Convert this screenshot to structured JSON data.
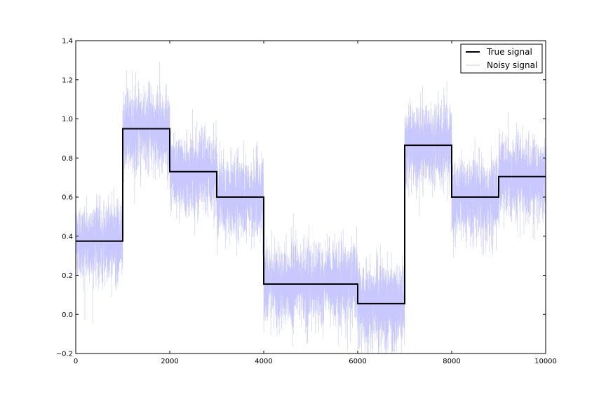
{
  "chart_data": {
    "type": "line",
    "title": "",
    "xlabel": "",
    "ylabel": "",
    "xlim": [
      0,
      10000
    ],
    "ylim": [
      -0.2,
      1.4
    ],
    "xticks": [
      0,
      2000,
      4000,
      6000,
      8000,
      10000
    ],
    "xtick_labels": [
      "0",
      "2000",
      "4000",
      "6000",
      "8000",
      "10000"
    ],
    "yticks": [
      -0.2,
      0.0,
      0.2,
      0.4,
      0.6,
      0.8,
      1.0,
      1.2,
      1.4
    ],
    "ytick_labels": [
      "−0.2",
      "0.0",
      "0.2",
      "0.4",
      "0.6",
      "0.8",
      "1.0",
      "1.2",
      "1.4"
    ],
    "grid": false,
    "legend_position": "top-right",
    "series": [
      {
        "name": "True signal",
        "kind": "step",
        "color": "#000000",
        "segments": [
          {
            "x_start": 0,
            "x_end": 1000,
            "y": 0.375
          },
          {
            "x_start": 1000,
            "x_end": 2000,
            "y": 0.95
          },
          {
            "x_start": 2000,
            "x_end": 3000,
            "y": 0.73
          },
          {
            "x_start": 3000,
            "x_end": 4000,
            "y": 0.6
          },
          {
            "x_start": 4000,
            "x_end": 6000,
            "y": 0.155
          },
          {
            "x_start": 6000,
            "x_end": 7000,
            "y": 0.055
          },
          {
            "x_start": 7000,
            "x_end": 8000,
            "y": 0.865
          },
          {
            "x_start": 8000,
            "x_end": 9000,
            "y": 0.6
          },
          {
            "x_start": 9000,
            "x_end": 10000,
            "y": 0.705
          }
        ]
      },
      {
        "name": "Noisy signal",
        "kind": "noisy",
        "color": "#c8c8ff",
        "noise_std": 0.1,
        "n_points": 10000
      }
    ]
  }
}
